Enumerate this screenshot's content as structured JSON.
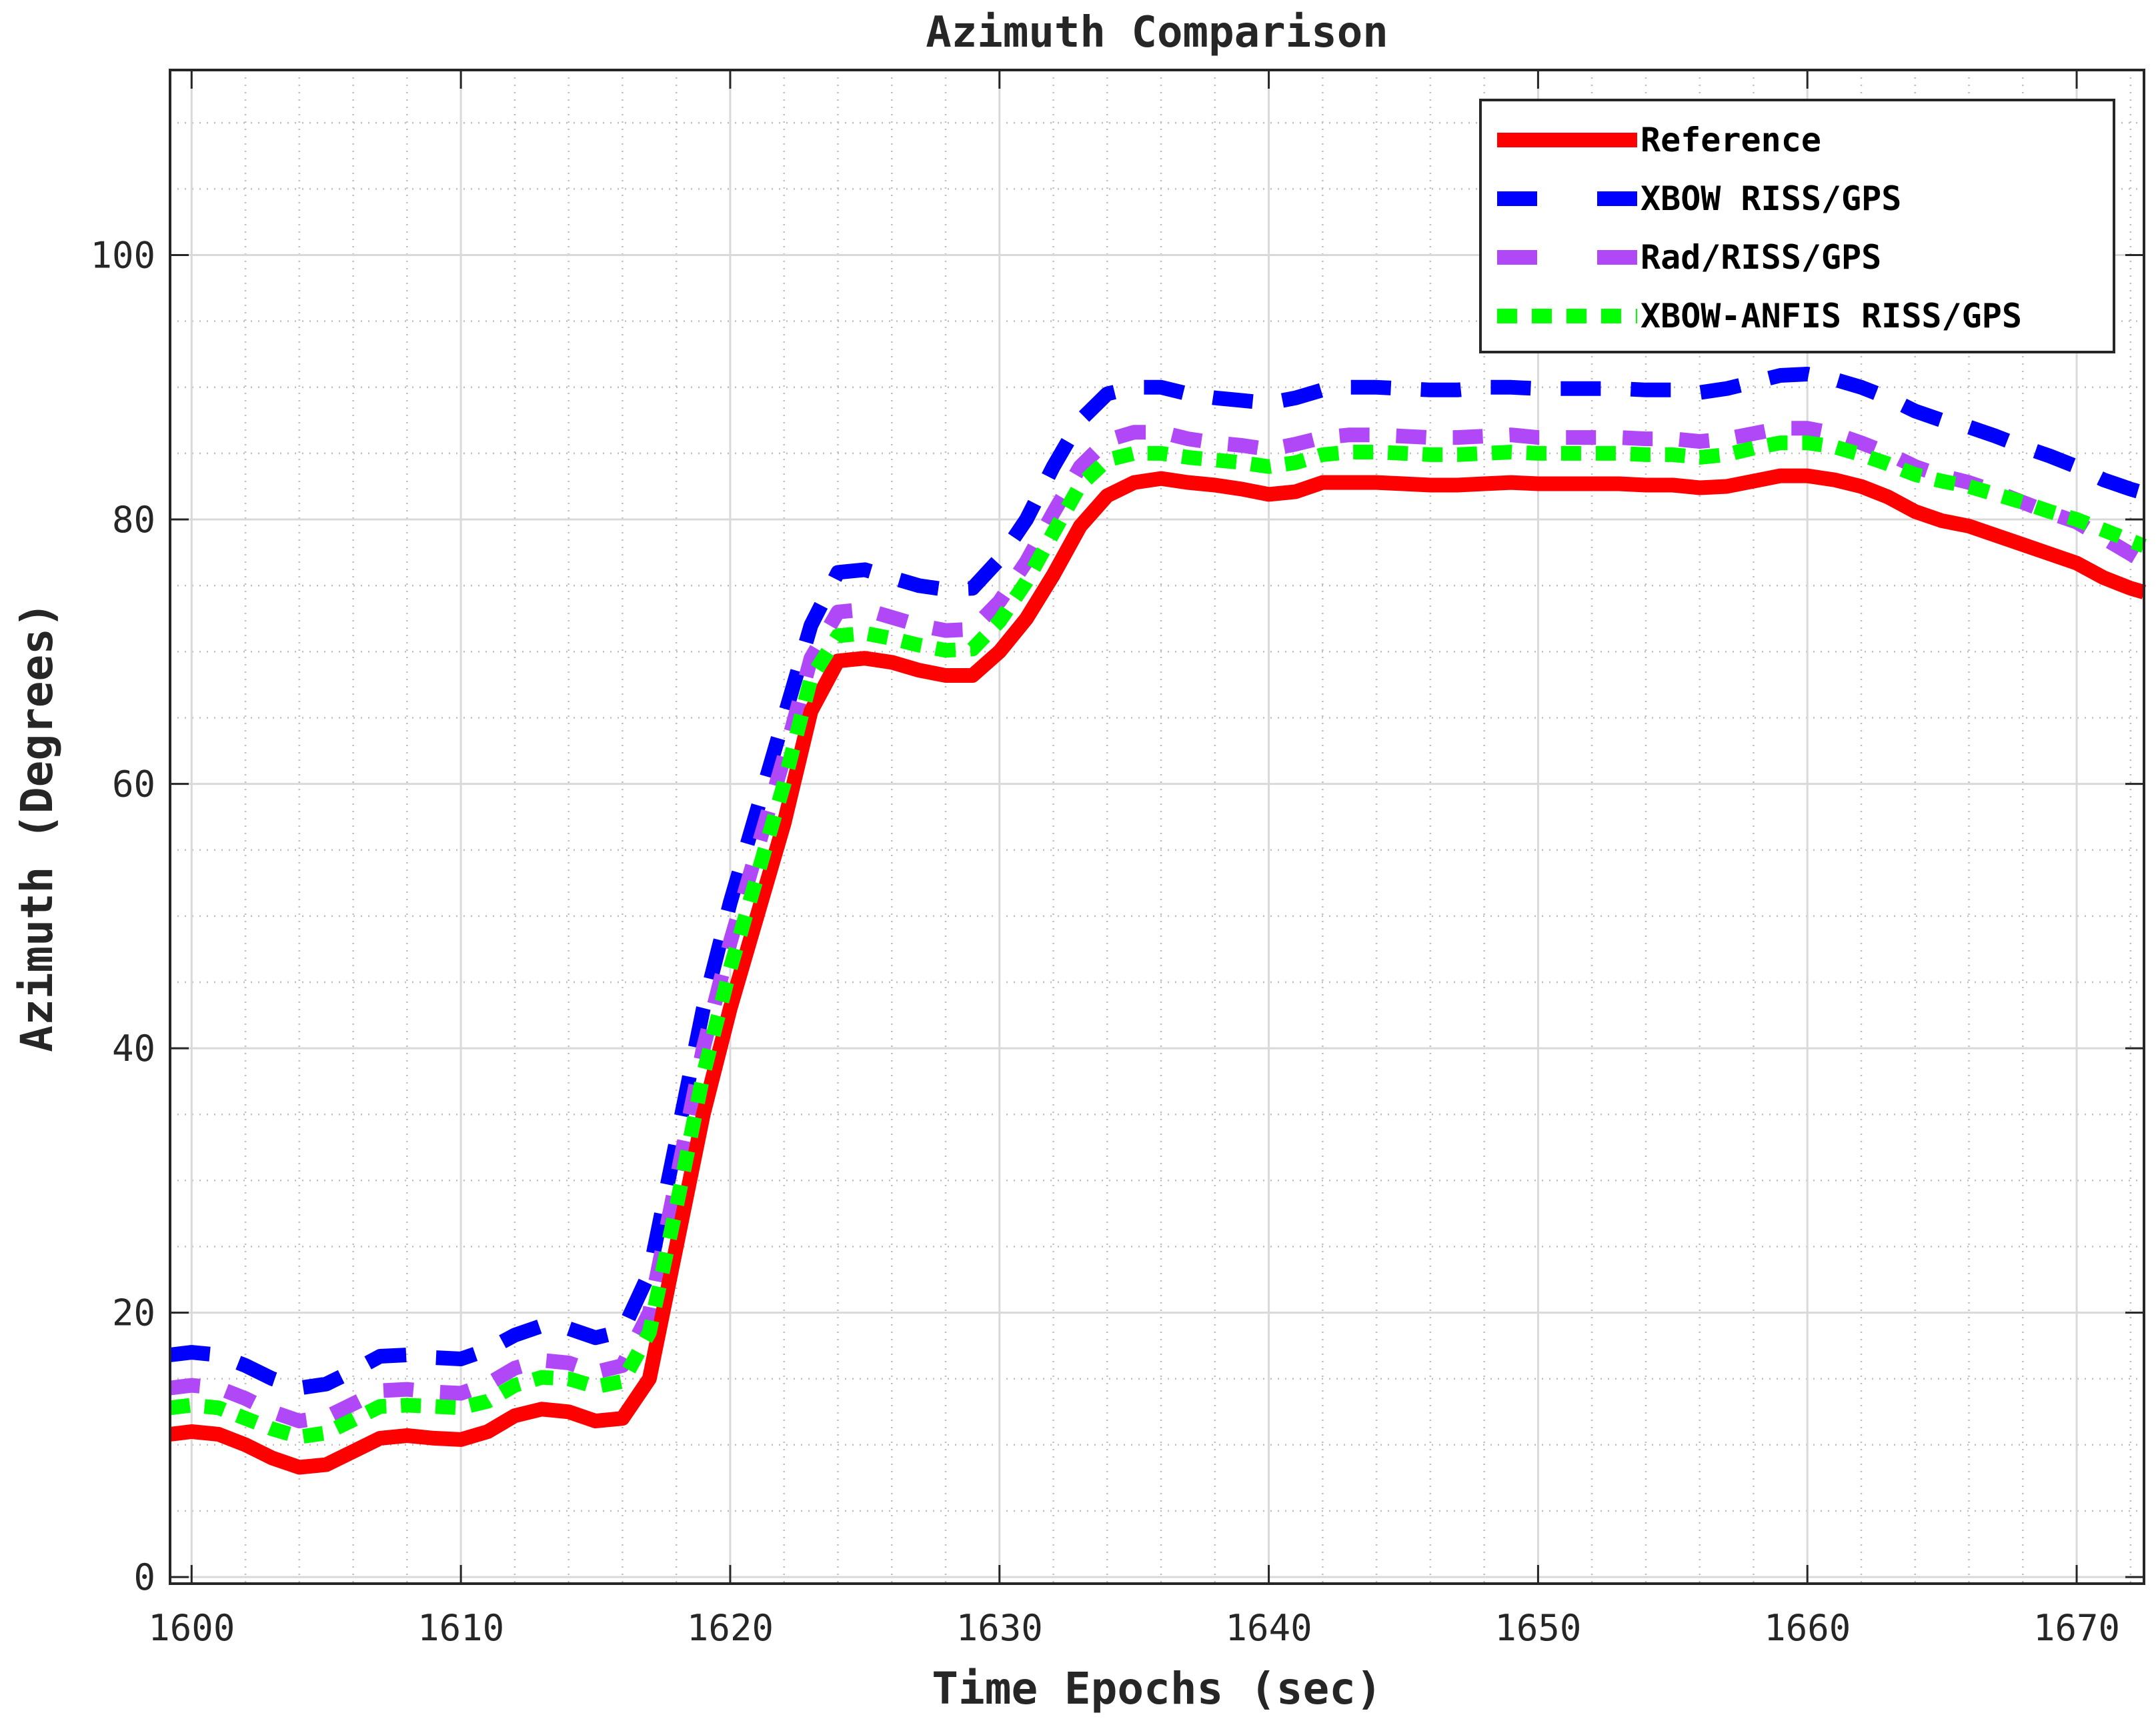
{
  "chart_data": {
    "type": "line",
    "title": "Azimuth Comparison",
    "xlabel": "Time Epochs (sec)",
    "ylabel": "Azimuth (Degrees)",
    "xlim": [
      1599.2,
      1672.5
    ],
    "ylim": [
      -0.5,
      114
    ],
    "xticks": [
      1600,
      1610,
      1620,
      1630,
      1640,
      1650,
      1660,
      1670
    ],
    "yticks": [
      0,
      20,
      40,
      60,
      80,
      100
    ],
    "grid": true,
    "minor_grid": true,
    "legend_position": "top-right",
    "series": [
      {
        "name": "Reference",
        "color": "#ff0000",
        "style": "solid",
        "x": [
          1599.2,
          1600,
          1601,
          1602,
          1603,
          1604,
          1605,
          1606,
          1607,
          1608,
          1609,
          1610,
          1611,
          1612,
          1613,
          1614,
          1615,
          1616,
          1617,
          1618,
          1619,
          1620,
          1621,
          1622,
          1623,
          1624,
          1625,
          1626,
          1627,
          1628,
          1629,
          1630,
          1631,
          1632,
          1633,
          1634,
          1635,
          1636,
          1637,
          1638,
          1639,
          1640,
          1641,
          1642,
          1643,
          1644,
          1645,
          1646,
          1647,
          1648,
          1649,
          1650,
          1651,
          1652,
          1653,
          1654,
          1655,
          1656,
          1657,
          1658,
          1659,
          1660,
          1661,
          1662,
          1663,
          1664,
          1665,
          1666,
          1667,
          1668,
          1669,
          1670,
          1671,
          1672,
          1672.5
        ],
        "y": [
          10.8,
          11.0,
          10.8,
          10.0,
          9.0,
          8.3,
          8.5,
          9.5,
          10.5,
          10.7,
          10.5,
          10.4,
          11.0,
          12.2,
          12.7,
          12.5,
          11.8,
          12.0,
          15.0,
          25.0,
          35.0,
          43.0,
          50.0,
          57.0,
          65.5,
          69.3,
          69.5,
          69.2,
          68.6,
          68.2,
          68.2,
          70.0,
          72.5,
          75.8,
          79.5,
          81.8,
          82.8,
          83.1,
          82.8,
          82.6,
          82.3,
          81.9,
          82.1,
          82.8,
          82.8,
          82.8,
          82.7,
          82.6,
          82.6,
          82.7,
          82.8,
          82.7,
          82.7,
          82.7,
          82.7,
          82.6,
          82.6,
          82.4,
          82.5,
          82.9,
          83.3,
          83.3,
          83.0,
          82.5,
          81.7,
          80.6,
          79.9,
          79.5,
          78.8,
          78.1,
          77.4,
          76.7,
          75.6,
          74.8,
          74.5
        ]
      },
      {
        "name": "XBOW RISS/GPS",
        "color": "#0000ff",
        "style": "dashed",
        "x": [
          1599.2,
          1600,
          1601,
          1602,
          1603,
          1604,
          1605,
          1606,
          1607,
          1608,
          1609,
          1610,
          1611,
          1612,
          1613,
          1614,
          1615,
          1616,
          1617,
          1618,
          1619,
          1620,
          1621,
          1622,
          1623,
          1624,
          1625,
          1626,
          1627,
          1628,
          1629,
          1630,
          1631,
          1632,
          1633,
          1634,
          1635,
          1636,
          1637,
          1638,
          1639,
          1640,
          1641,
          1642,
          1643,
          1644,
          1645,
          1646,
          1647,
          1648,
          1649,
          1650,
          1651,
          1652,
          1653,
          1654,
          1655,
          1656,
          1657,
          1658,
          1659,
          1660,
          1661,
          1662,
          1663,
          1664,
          1665,
          1666,
          1667,
          1668,
          1669,
          1670,
          1671,
          1672,
          1672.5
        ],
        "y": [
          16.8,
          17.0,
          16.8,
          16.0,
          15.0,
          14.3,
          14.6,
          15.6,
          16.7,
          16.8,
          16.6,
          16.5,
          17.2,
          18.3,
          19.0,
          18.8,
          18.1,
          18.6,
          23.0,
          33.0,
          43.0,
          51.0,
          58.0,
          65.0,
          72.0,
          76.0,
          76.2,
          75.6,
          75.0,
          74.7,
          74.8,
          77.0,
          80.0,
          84.0,
          87.5,
          89.5,
          90.0,
          90.0,
          89.5,
          89.2,
          89.0,
          88.8,
          89.2,
          89.8,
          90.0,
          90.0,
          89.9,
          89.8,
          89.8,
          90.0,
          90.0,
          89.9,
          89.9,
          89.9,
          89.9,
          89.8,
          89.8,
          89.6,
          89.9,
          90.4,
          90.9,
          91.0,
          90.6,
          90.0,
          89.2,
          88.2,
          87.5,
          87.0,
          86.3,
          85.5,
          84.8,
          84.0,
          83.0,
          82.3,
          82.0
        ]
      },
      {
        "name": "Rad/RISS/GPS",
        "color": "#b048f8",
        "style": "dashed",
        "x": [
          1599.2,
          1600,
          1601,
          1602,
          1603,
          1604,
          1605,
          1606,
          1607,
          1608,
          1609,
          1610,
          1611,
          1612,
          1613,
          1614,
          1615,
          1616,
          1617,
          1618,
          1619,
          1620,
          1621,
          1622,
          1623,
          1624,
          1625,
          1626,
          1627,
          1628,
          1629,
          1630,
          1631,
          1632,
          1633,
          1634,
          1635,
          1636,
          1637,
          1638,
          1639,
          1640,
          1641,
          1642,
          1643,
          1644,
          1645,
          1646,
          1647,
          1648,
          1649,
          1650,
          1651,
          1652,
          1653,
          1654,
          1655,
          1656,
          1657,
          1658,
          1659,
          1660,
          1661,
          1662,
          1663,
          1664,
          1665,
          1666,
          1667,
          1668,
          1669,
          1670,
          1671,
          1672,
          1672.5
        ],
        "y": [
          14.3,
          14.5,
          14.3,
          13.5,
          12.5,
          11.8,
          12.1,
          13.1,
          14.1,
          14.2,
          14.0,
          13.9,
          14.6,
          15.8,
          16.4,
          16.2,
          15.5,
          16.0,
          20.0,
          30.0,
          40.0,
          48.0,
          55.0,
          62.0,
          69.5,
          73.0,
          73.2,
          72.6,
          72.0,
          71.6,
          71.7,
          73.8,
          76.8,
          80.5,
          84.0,
          86.0,
          86.6,
          86.6,
          86.1,
          85.8,
          85.6,
          85.3,
          85.7,
          86.2,
          86.4,
          86.4,
          86.3,
          86.2,
          86.2,
          86.3,
          86.4,
          86.2,
          86.2,
          86.2,
          86.2,
          86.1,
          86.1,
          85.9,
          86.1,
          86.5,
          86.9,
          86.9,
          86.5,
          85.8,
          85.0,
          84.0,
          83.3,
          82.8,
          82.1,
          81.3,
          80.5,
          79.8,
          78.6,
          77.4,
          76.8
        ]
      },
      {
        "name": "XBOW-ANFIS RISS/GPS",
        "color": "#00ff00",
        "style": "dashed",
        "x": [
          1599.2,
          1600,
          1601,
          1602,
          1603,
          1604,
          1605,
          1606,
          1607,
          1608,
          1609,
          1610,
          1611,
          1612,
          1613,
          1614,
          1615,
          1616,
          1617,
          1618,
          1619,
          1620,
          1621,
          1622,
          1623,
          1624,
          1625,
          1626,
          1627,
          1628,
          1629,
          1630,
          1631,
          1632,
          1633,
          1634,
          1635,
          1636,
          1637,
          1638,
          1639,
          1640,
          1641,
          1642,
          1643,
          1644,
          1645,
          1646,
          1647,
          1648,
          1649,
          1650,
          1651,
          1652,
          1653,
          1654,
          1655,
          1656,
          1657,
          1658,
          1659,
          1660,
          1661,
          1662,
          1663,
          1664,
          1665,
          1666,
          1667,
          1668,
          1669,
          1670,
          1671,
          1672,
          1672.5
        ],
        "y": [
          12.8,
          13.0,
          12.8,
          12.0,
          11.2,
          10.6,
          10.9,
          11.9,
          12.9,
          13.0,
          12.9,
          12.8,
          13.3,
          14.5,
          15.1,
          15.0,
          14.4,
          14.8,
          18.5,
          28.0,
          38.0,
          46.0,
          53.0,
          60.0,
          68.0,
          71.2,
          71.4,
          71.0,
          70.5,
          70.1,
          70.2,
          72.3,
          75.3,
          79.0,
          82.6,
          84.5,
          85.0,
          85.0,
          84.7,
          84.5,
          84.3,
          84.0,
          84.3,
          84.9,
          85.1,
          85.1,
          85.0,
          84.9,
          84.9,
          85.0,
          85.1,
          85.0,
          85.0,
          85.0,
          85.0,
          84.9,
          84.9,
          84.7,
          84.9,
          85.4,
          85.8,
          85.8,
          85.5,
          84.9,
          84.2,
          83.4,
          82.9,
          82.5,
          81.9,
          81.3,
          80.6,
          80.0,
          79.2,
          78.4,
          78.0
        ]
      }
    ]
  }
}
